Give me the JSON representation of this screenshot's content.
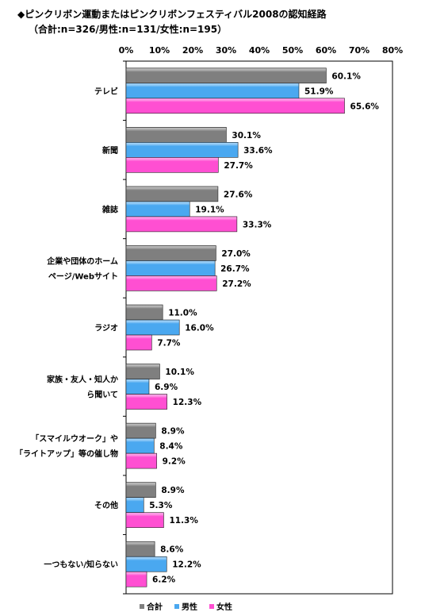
{
  "title": "◆ピンクリボン運動またはピンクリボンフェスティバル2008の認知経路",
  "subtitle": "（合計:n=326/男性:n=131/女性:n=195）",
  "chart_data": {
    "type": "bar",
    "orientation": "horizontal",
    "xlim": [
      0,
      80
    ],
    "x_ticks": [
      "0%",
      "10%",
      "20%",
      "30%",
      "40%",
      "50%",
      "60%",
      "70%",
      "80%"
    ],
    "categories": [
      [
        "テレビ"
      ],
      [
        "新聞"
      ],
      [
        "雑誌"
      ],
      [
        "企業や団体のホーム",
        "ページ/Webサイト"
      ],
      [
        "ラジオ"
      ],
      [
        "家族・友人・知人か",
        "ら聞いて"
      ],
      [
        "「スマイルウオーク」や",
        "「ライトアップ」等の催し物"
      ],
      [
        "その他"
      ],
      [
        "一つもない/知らない"
      ]
    ],
    "series": [
      {
        "name": "合計",
        "color": "#7f7f7f",
        "values": [
          60.1,
          30.1,
          27.6,
          27.0,
          11.0,
          10.1,
          8.9,
          8.9,
          8.6
        ],
        "labels": [
          "60.1%",
          "30.1%",
          "27.6%",
          "27.0%",
          "11.0%",
          "10.1%",
          "8.9%",
          "8.9%",
          "8.6%"
        ]
      },
      {
        "name": "男性",
        "color": "#4aa8f0",
        "values": [
          51.9,
          33.6,
          19.1,
          26.7,
          16.0,
          6.9,
          8.4,
          5.3,
          12.2
        ],
        "labels": [
          "51.9%",
          "33.6%",
          "19.1%",
          "26.7%",
          "16.0%",
          "6.9%",
          "8.4%",
          "5.3%",
          "12.2%"
        ]
      },
      {
        "name": "女性",
        "color": "#ff4fd2",
        "values": [
          65.6,
          27.7,
          33.3,
          27.2,
          7.7,
          12.3,
          9.2,
          11.3,
          6.2
        ],
        "labels": [
          "65.6%",
          "27.7%",
          "33.3%",
          "27.2%",
          "7.7%",
          "12.3%",
          "9.2%",
          "11.3%",
          "6.2%"
        ]
      }
    ],
    "legend_position": "bottom",
    "grid": false
  }
}
